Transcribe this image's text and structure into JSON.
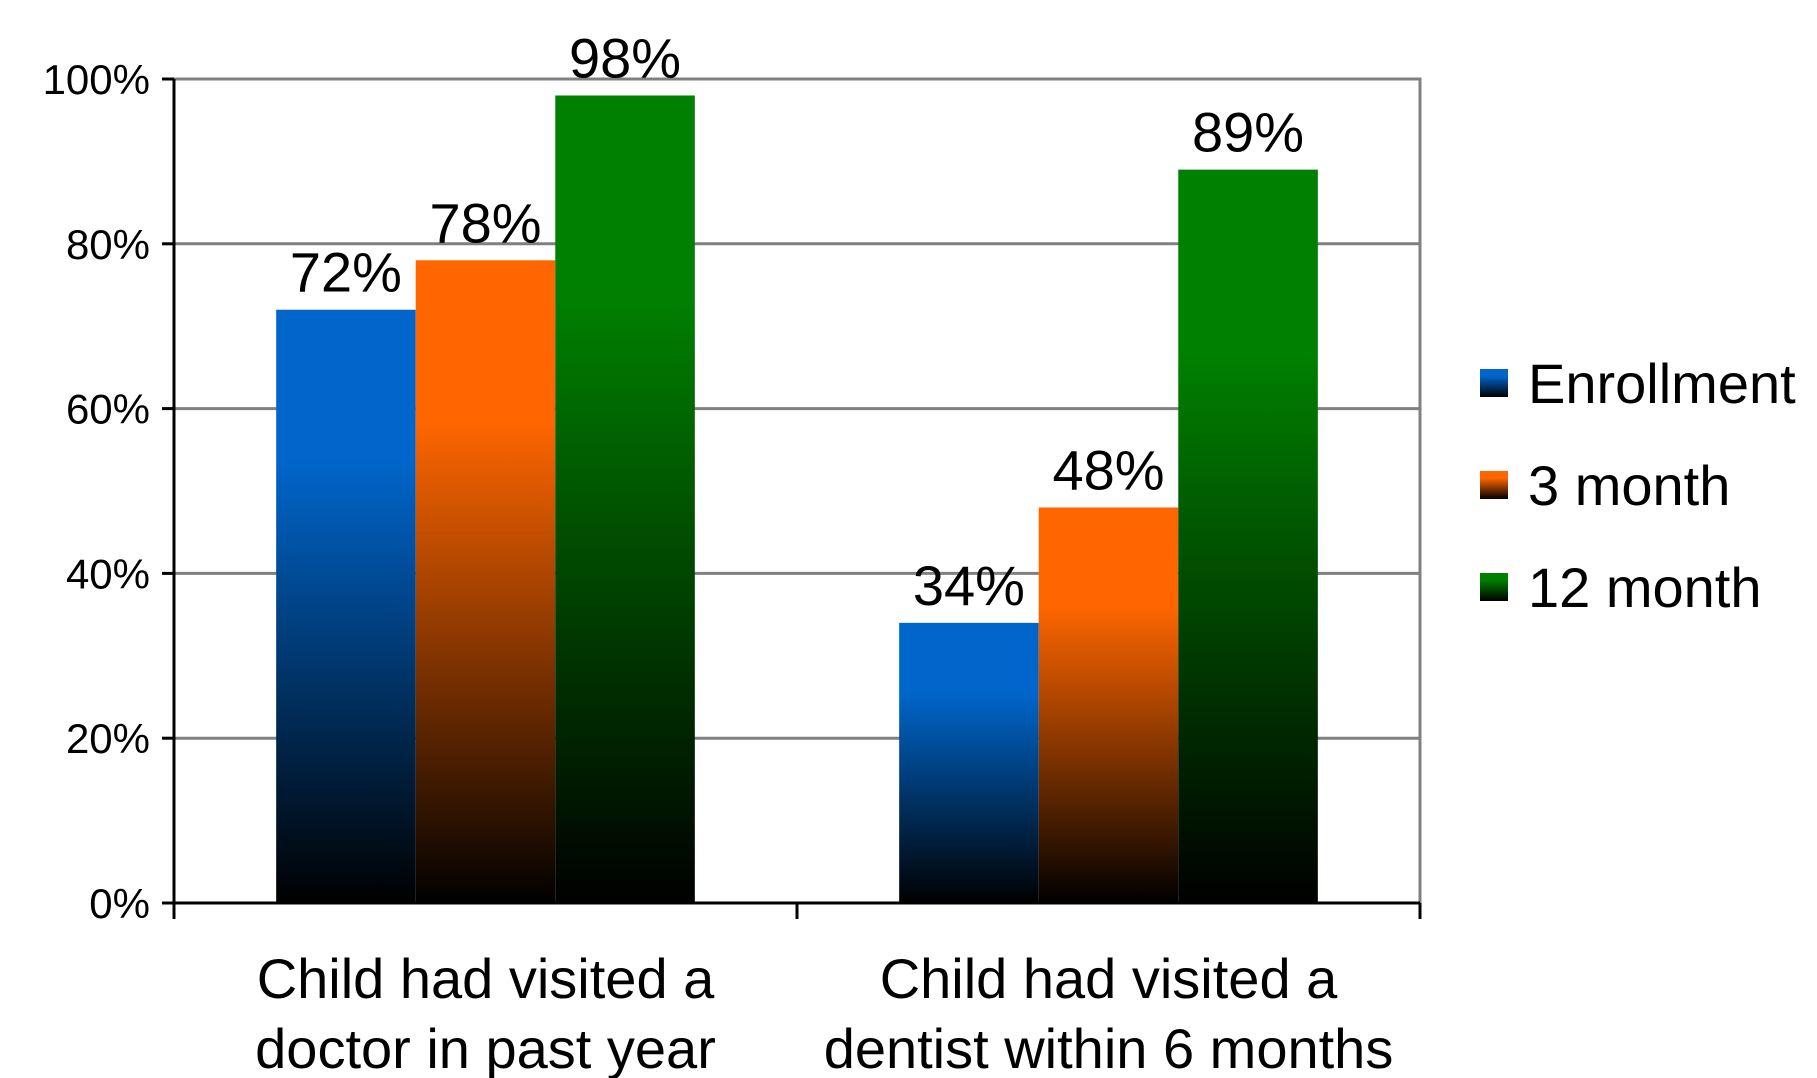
{
  "chart_data": {
    "type": "bar",
    "categories": [
      [
        "Child had visited a",
        "doctor in past year"
      ],
      [
        "Child had visited a",
        "dentist within 6 months"
      ]
    ],
    "series": [
      {
        "name": "Enrollment",
        "values": [
          72,
          34
        ],
        "color": "#0066cc"
      },
      {
        "name": "3 month",
        "values": [
          78,
          48
        ],
        "color": "#ff6600"
      },
      {
        "name": "12 month",
        "values": [
          98,
          89
        ],
        "color": "#008000"
      }
    ],
    "data_labels": [
      [
        "72%",
        "34%"
      ],
      [
        "78%",
        "48%"
      ],
      [
        "98%",
        "89%"
      ]
    ],
    "yticks": [
      "0%",
      "20%",
      "40%",
      "60%",
      "80%",
      "100%"
    ],
    "ylim": [
      0,
      100
    ],
    "grid": true,
    "legend_position": "right",
    "title": "",
    "xlabel": "",
    "ylabel": ""
  }
}
